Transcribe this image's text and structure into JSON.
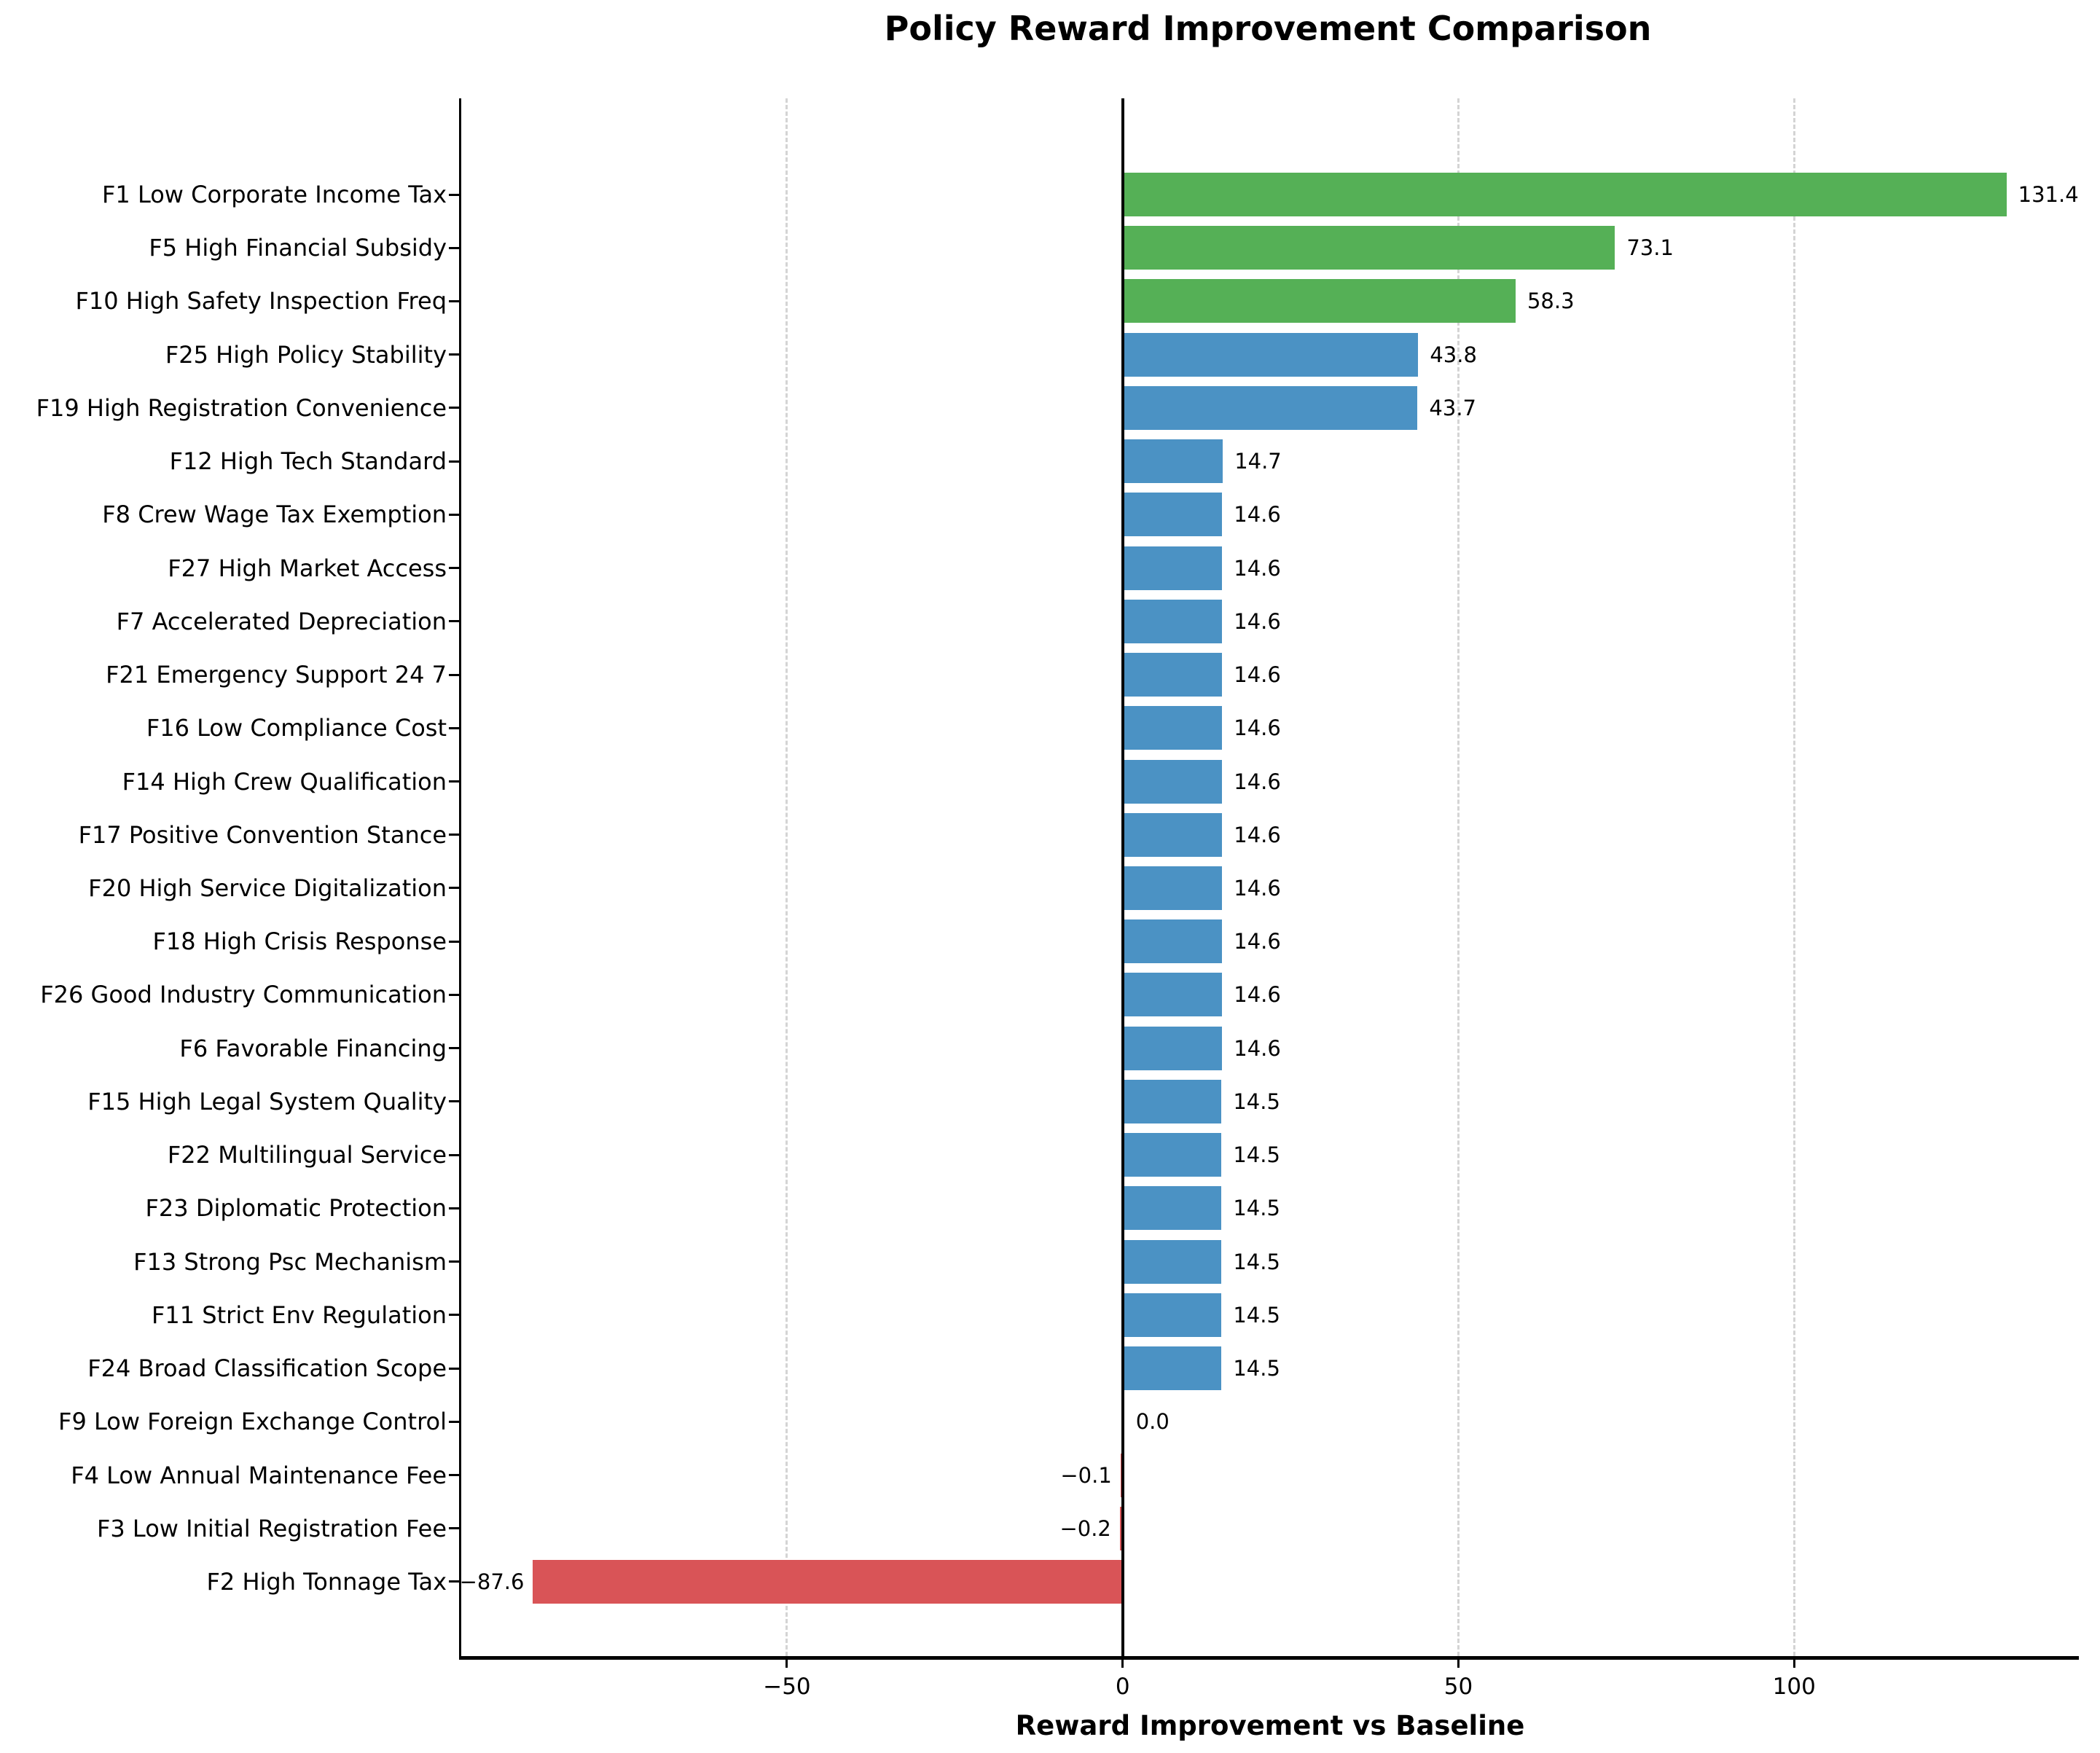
{
  "title": "Policy Reward Improvement Comparison",
  "chart_data": {
    "type": "bar",
    "orientation": "horizontal",
    "title": "Policy Reward Improvement Comparison",
    "xlabel": "Reward Improvement vs Baseline",
    "ylabel": "",
    "xlim": [
      -98.5,
      142.4
    ],
    "grid": "vertical dashed gridlines at ticks, solid black line at 0",
    "legend": "none",
    "zero_line_value": 0,
    "xticks": [
      {
        "value": -50,
        "label": "−50"
      },
      {
        "value": 0,
        "label": "0"
      },
      {
        "value": 50,
        "label": "50"
      },
      {
        "value": 100,
        "label": "100"
      }
    ],
    "palette": {
      "green": "#55b056",
      "blue": "#4b92c4",
      "red": "#d95457"
    },
    "bars": [
      {
        "label": "F1 Low Corporate Income Tax",
        "value": 131.4,
        "value_label": "131.4",
        "color": "green"
      },
      {
        "label": "F5 High Financial Subsidy",
        "value": 73.1,
        "value_label": "73.1",
        "color": "green"
      },
      {
        "label": "F10 High Safety Inspection Freq",
        "value": 58.3,
        "value_label": "58.3",
        "color": "green"
      },
      {
        "label": "F25 High Policy Stability",
        "value": 43.8,
        "value_label": "43.8",
        "color": "blue"
      },
      {
        "label": "F19 High Registration Convenience",
        "value": 43.7,
        "value_label": "43.7",
        "color": "blue"
      },
      {
        "label": "F12 High Tech Standard",
        "value": 14.7,
        "value_label": "14.7",
        "color": "blue"
      },
      {
        "label": "F8 Crew Wage Tax Exemption",
        "value": 14.6,
        "value_label": "14.6",
        "color": "blue"
      },
      {
        "label": "F27 High Market Access",
        "value": 14.6,
        "value_label": "14.6",
        "color": "blue"
      },
      {
        "label": "F7 Accelerated Depreciation",
        "value": 14.6,
        "value_label": "14.6",
        "color": "blue"
      },
      {
        "label": "F21 Emergency Support 24 7",
        "value": 14.6,
        "value_label": "14.6",
        "color": "blue"
      },
      {
        "label": "F16 Low Compliance Cost",
        "value": 14.6,
        "value_label": "14.6",
        "color": "blue"
      },
      {
        "label": "F14 High Crew Qualification",
        "value": 14.6,
        "value_label": "14.6",
        "color": "blue"
      },
      {
        "label": "F17 Positive Convention Stance",
        "value": 14.6,
        "value_label": "14.6",
        "color": "blue"
      },
      {
        "label": "F20 High Service Digitalization",
        "value": 14.6,
        "value_label": "14.6",
        "color": "blue"
      },
      {
        "label": "F18 High Crisis Response",
        "value": 14.6,
        "value_label": "14.6",
        "color": "blue"
      },
      {
        "label": "F26 Good Industry Communication",
        "value": 14.6,
        "value_label": "14.6",
        "color": "blue"
      },
      {
        "label": "F6 Favorable Financing",
        "value": 14.6,
        "value_label": "14.6",
        "color": "blue"
      },
      {
        "label": "F15 High Legal System Quality",
        "value": 14.5,
        "value_label": "14.5",
        "color": "blue"
      },
      {
        "label": "F22 Multilingual Service",
        "value": 14.5,
        "value_label": "14.5",
        "color": "blue"
      },
      {
        "label": "F23 Diplomatic Protection",
        "value": 14.5,
        "value_label": "14.5",
        "color": "blue"
      },
      {
        "label": "F13 Strong Psc Mechanism",
        "value": 14.5,
        "value_label": "14.5",
        "color": "blue"
      },
      {
        "label": "F11 Strict Env Regulation",
        "value": 14.5,
        "value_label": "14.5",
        "color": "blue"
      },
      {
        "label": "F24 Broad Classification Scope",
        "value": 14.5,
        "value_label": "14.5",
        "color": "blue"
      },
      {
        "label": "F9 Low Foreign Exchange Control",
        "value": 0.0,
        "value_label": "0.0",
        "color": "blue"
      },
      {
        "label": "F4 Low Annual Maintenance Fee",
        "value": -0.1,
        "value_label": "−0.1",
        "color": "red"
      },
      {
        "label": "F3 Low Initial Registration Fee",
        "value": -0.2,
        "value_label": "−0.2",
        "color": "red"
      },
      {
        "label": "F2 High Tonnage Tax",
        "value": -87.6,
        "value_label": "−87.6",
        "color": "red"
      }
    ]
  }
}
